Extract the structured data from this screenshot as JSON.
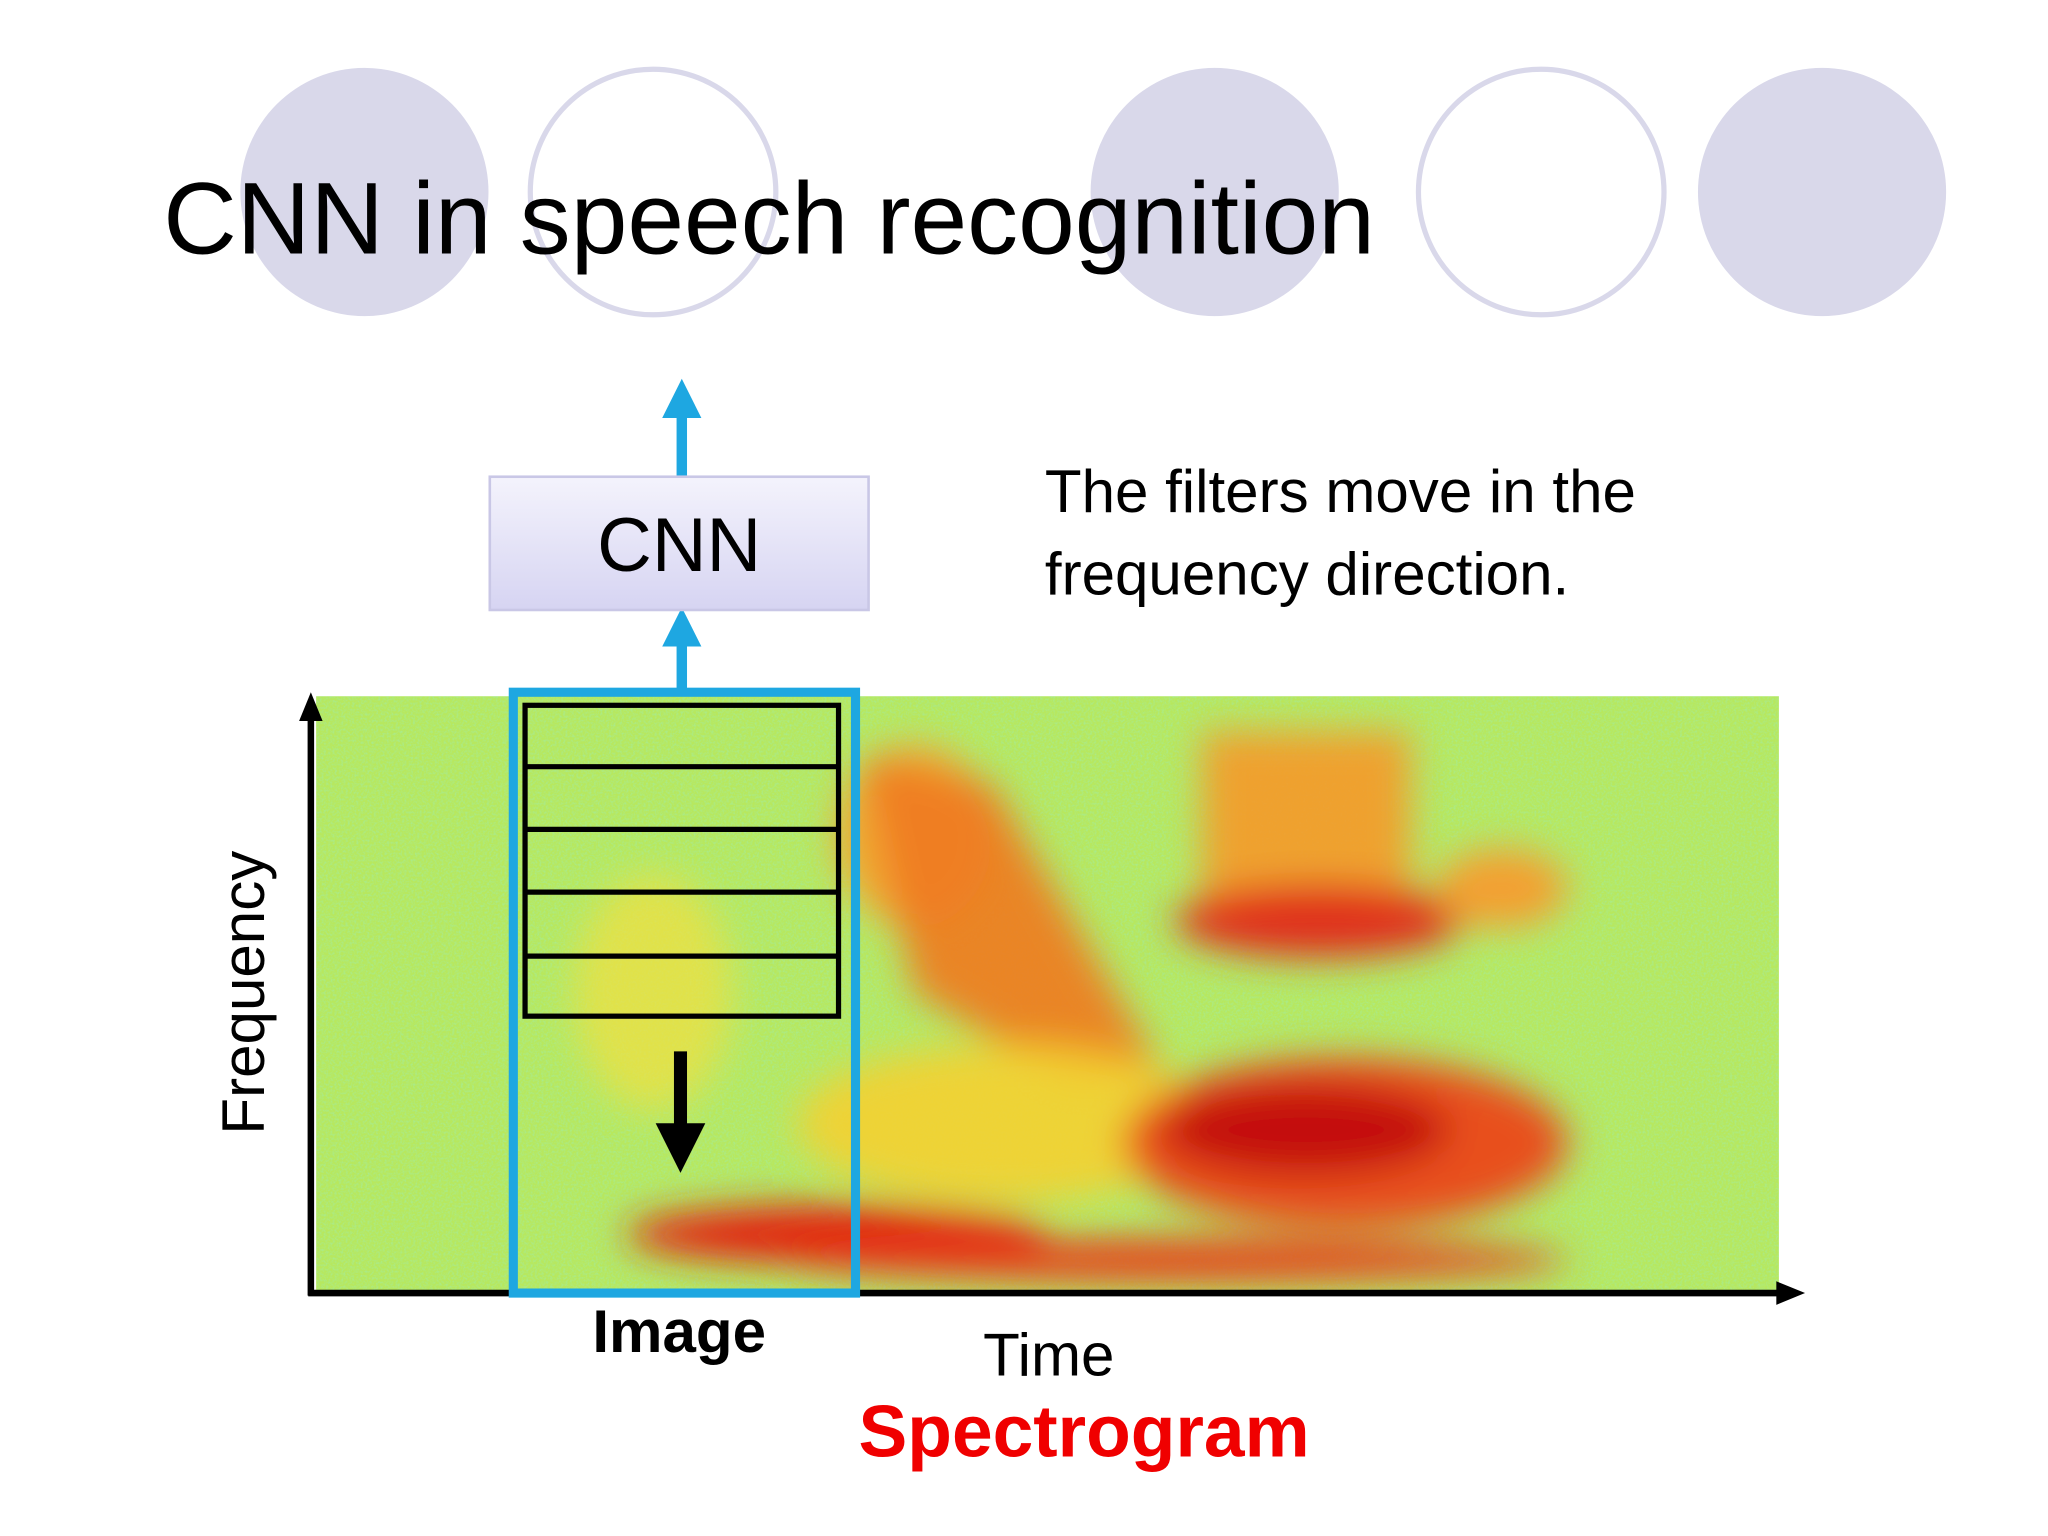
{
  "title": "CNN in speech recognition",
  "cnn_box": {
    "label": "CNN"
  },
  "note": {
    "lines": [
      "The filters move in the",
      "frequency direction."
    ]
  },
  "axes": {
    "y_label": "Frequency",
    "x_label": "Time"
  },
  "window_label": "Image",
  "caption": "Spectrogram"
}
